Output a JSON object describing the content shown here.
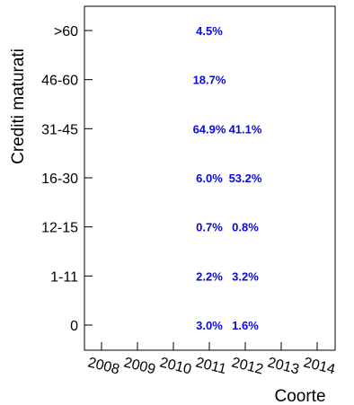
{
  "chart_data": {
    "type": "table",
    "xlabel": "Coorte",
    "ylabel": "Crediti maturati",
    "categories": [
      "0",
      "1-11",
      "12-15",
      "16-30",
      "31-45",
      "46-60",
      ">60"
    ],
    "x": [
      "2008",
      "2009",
      "2010",
      "2011",
      "2012",
      "2013",
      "2014"
    ],
    "cells": [
      {
        "x": "2011",
        "y": ">60",
        "label": "4.5%"
      },
      {
        "x": "2011",
        "y": "46-60",
        "label": "18.7%"
      },
      {
        "x": "2011",
        "y": "31-45",
        "label": "64.9%"
      },
      {
        "x": "2012",
        "y": "31-45",
        "label": "41.1%"
      },
      {
        "x": "2011",
        "y": "16-30",
        "label": "6.0%"
      },
      {
        "x": "2012",
        "y": "16-30",
        "label": "53.2%"
      },
      {
        "x": "2011",
        "y": "12-15",
        "label": "0.7%"
      },
      {
        "x": "2012",
        "y": "12-15",
        "label": "0.8%"
      },
      {
        "x": "2011",
        "y": "1-11",
        "label": "2.2%"
      },
      {
        "x": "2012",
        "y": "1-11",
        "label": "3.2%"
      },
      {
        "x": "2011",
        "y": "0",
        "label": "3.0%"
      },
      {
        "x": "2012",
        "y": "0",
        "label": "1.6%"
      }
    ],
    "label_color": "#0a0adc",
    "grid": false,
    "legend": "none"
  }
}
